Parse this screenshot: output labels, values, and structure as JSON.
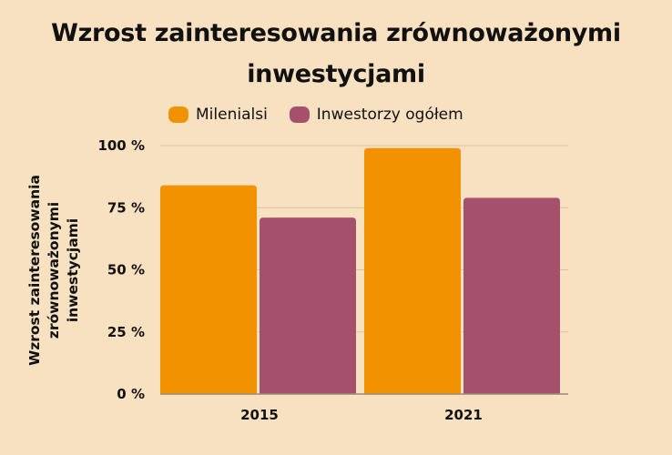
{
  "chart_data": {
    "type": "bar",
    "title": "Wzrost zainteresowania zrównoważonymi inwestycjami",
    "title_lines": [
      "Wzrost zainteresowania zrównoważonymi",
      "inwestycjami"
    ],
    "categories": [
      "2015",
      "2021"
    ],
    "series": [
      {
        "name": "Milenialsi",
        "values": [
          84,
          99
        ],
        "color": "#f39200"
      },
      {
        "name": "Inwestorzy ogółem",
        "values": [
          71,
          79
        ],
        "color": "#a5506d"
      }
    ],
    "xlabel": "",
    "ylabel": "Wzrost zainteresowania zrównoważonymi inwestycjami",
    "ylabel_lines": [
      "Wzrost zainteresowania",
      "zrównoważonymi",
      "inwestycjami"
    ],
    "ylim": [
      0,
      100
    ],
    "yticks": [
      0,
      25,
      50,
      75,
      100
    ],
    "ytick_labels": [
      "0 %",
      "25 %",
      "50 %",
      "75 %",
      "100 %"
    ],
    "grid": true,
    "legend_position": "top"
  },
  "colors": {
    "background": "#f7e1c1",
    "grid": "#d7c3a5",
    "axis": "#9a8c77",
    "text": "#111111"
  }
}
